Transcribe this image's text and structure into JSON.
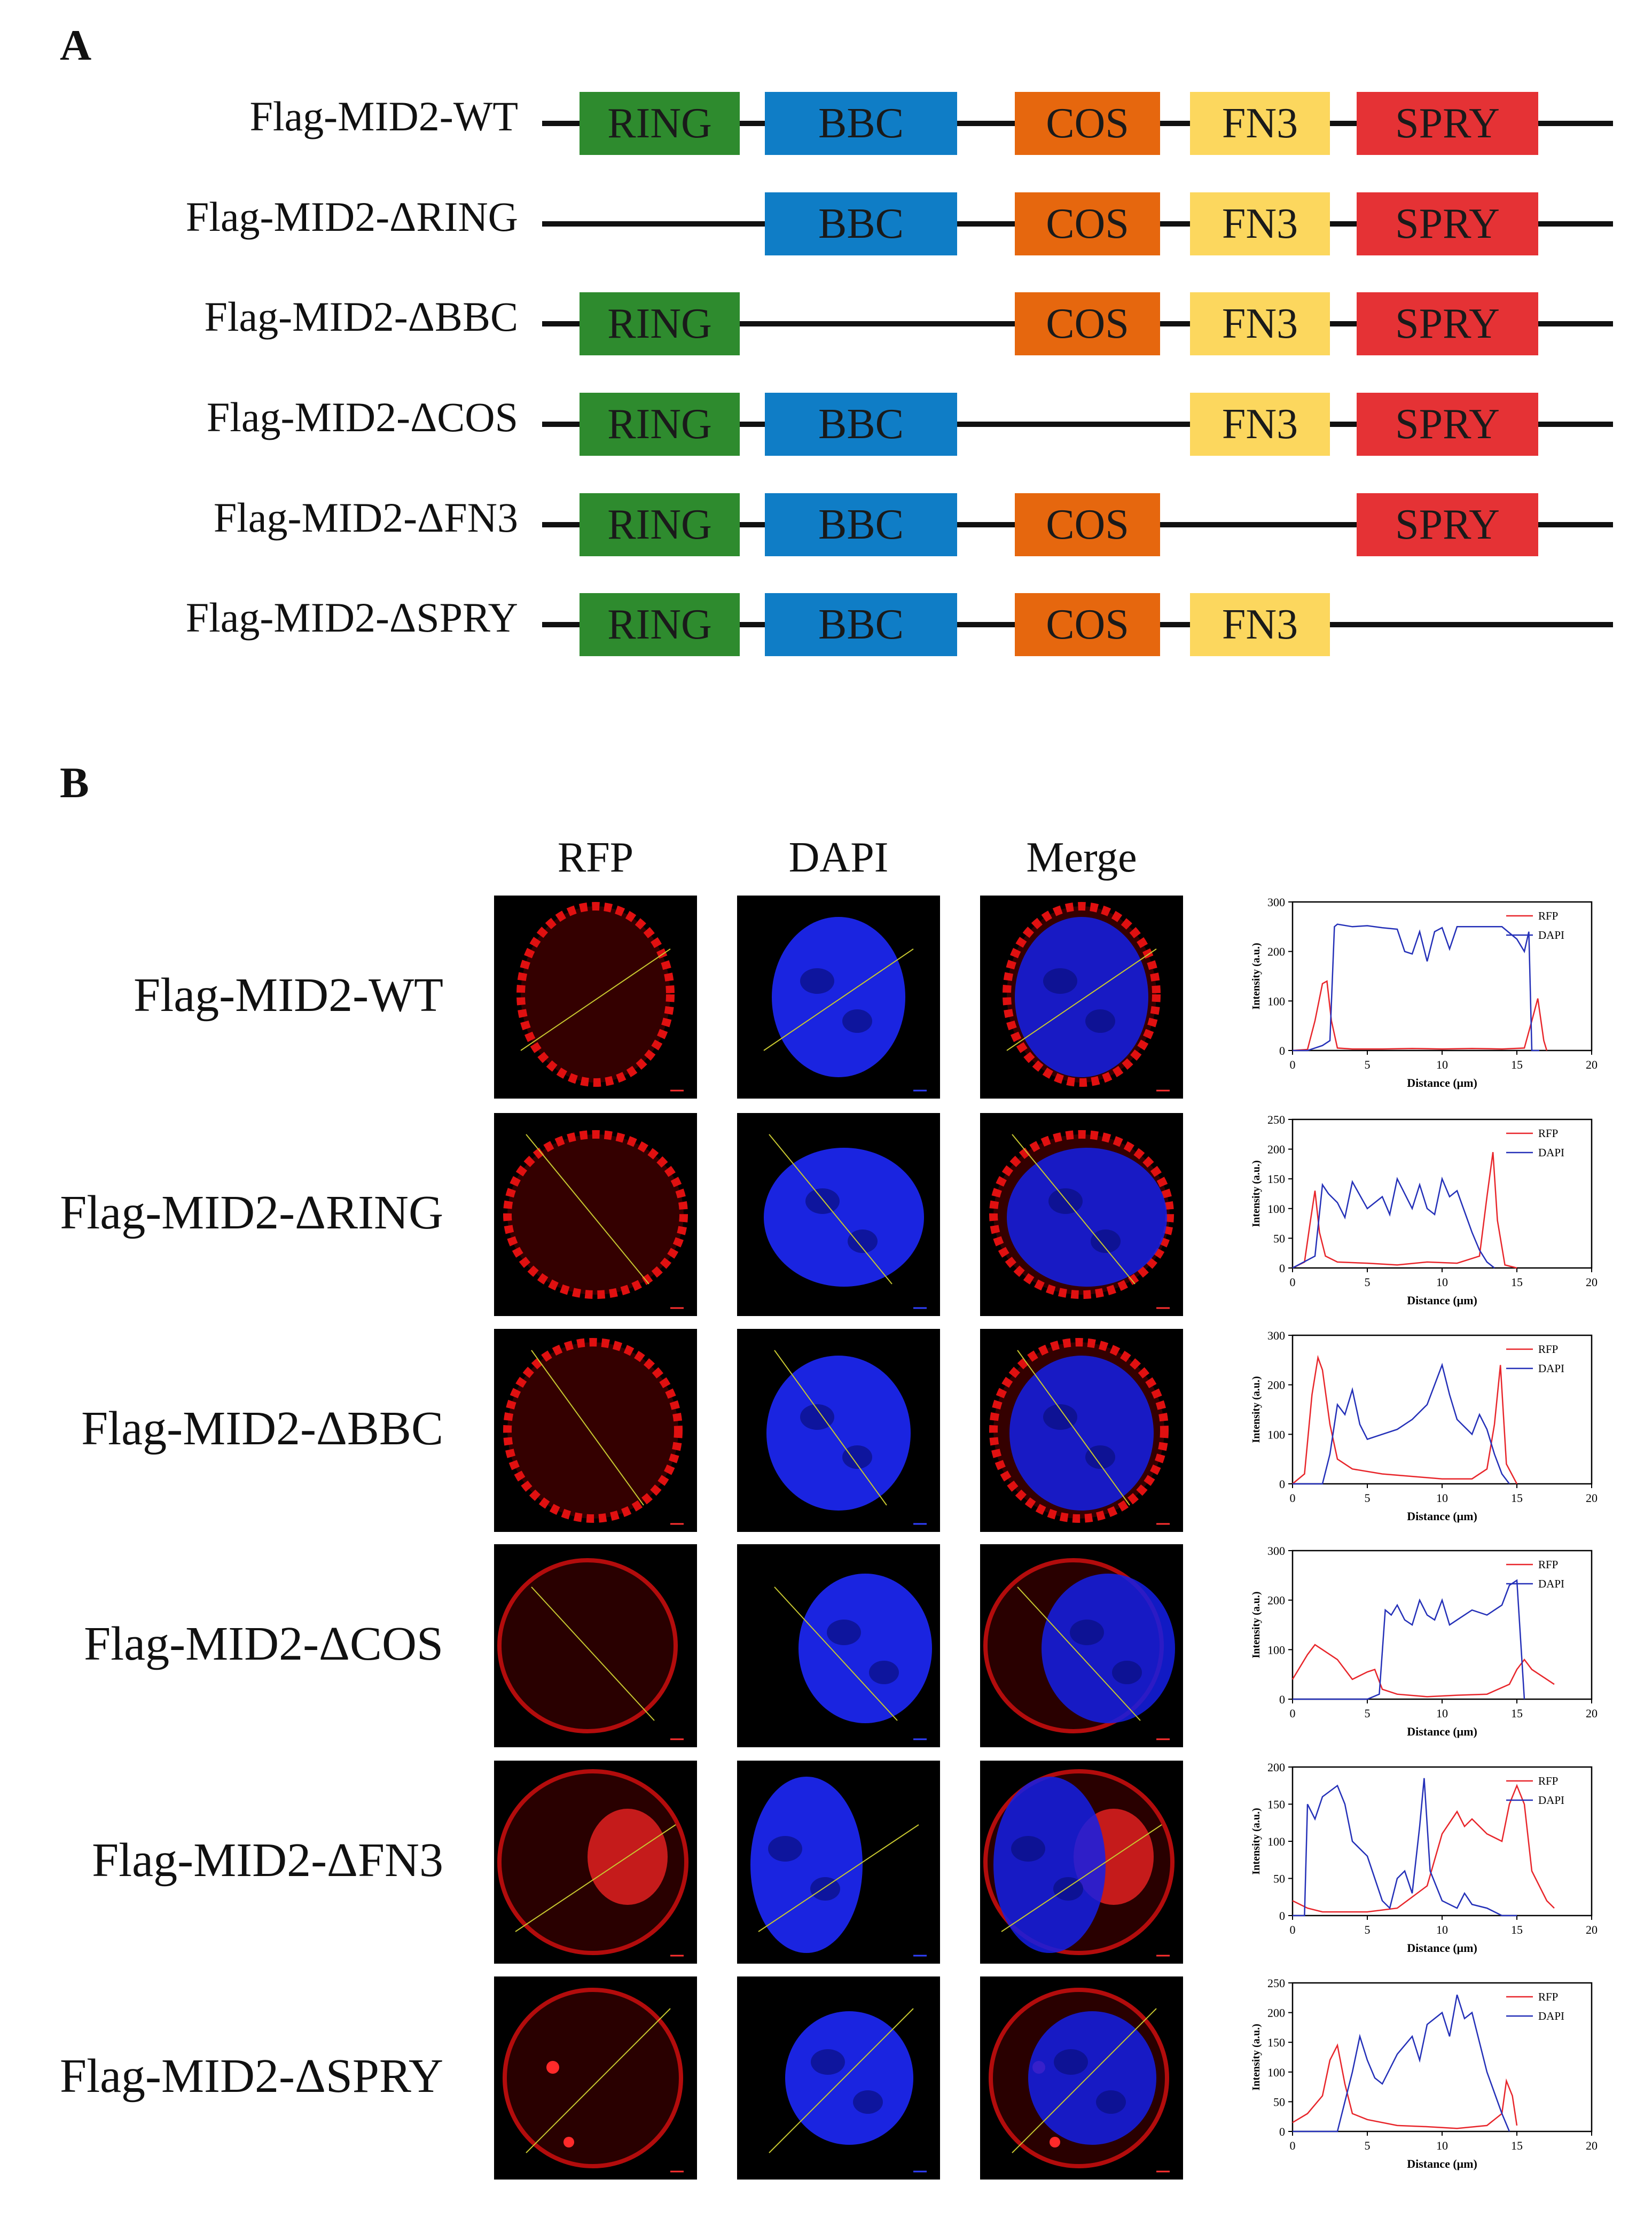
{
  "panel_a": {
    "letter": "A",
    "colors": {
      "RING": "#2e8b2e",
      "BBC": "#0f7dc6",
      "COS": "#e6670e",
      "FN3": "#fcd75e",
      "SPRY": "#e53235"
    },
    "constructs": [
      {
        "label": "Flag-MID2-WT",
        "domains": [
          "RING",
          "BBC",
          "COS",
          "FN3",
          "SPRY"
        ]
      },
      {
        "label": "Flag-MID2-ΔRING",
        "domains": [
          "BBC",
          "COS",
          "FN3",
          "SPRY"
        ]
      },
      {
        "label": "Flag-MID2-ΔBBC",
        "domains": [
          "RING",
          "COS",
          "FN3",
          "SPRY"
        ]
      },
      {
        "label": "Flag-MID2-ΔCOS",
        "domains": [
          "RING",
          "BBC",
          "FN3",
          "SPRY"
        ]
      },
      {
        "label": "Flag-MID2-ΔFN3",
        "domains": [
          "RING",
          "BBC",
          "COS",
          "SPRY"
        ]
      },
      {
        "label": "Flag-MID2-ΔSPRY",
        "domains": [
          "RING",
          "BBC",
          "COS",
          "FN3"
        ]
      }
    ]
  },
  "panel_b": {
    "letter": "B",
    "columns": [
      "RFP",
      "DAPI",
      "Merge"
    ],
    "rows": [
      {
        "label": "Flag-MID2-WT"
      },
      {
        "label": "Flag-MID2-ΔRING"
      },
      {
        "label": "Flag-MID2-ΔBBC"
      },
      {
        "label": "Flag-MID2-ΔCOS"
      },
      {
        "label": "Flag-MID2-ΔFN3"
      },
      {
        "label": "Flag-MID2-ΔSPRY"
      }
    ]
  },
  "chart_data": [
    {
      "type": "line",
      "xlabel": "Distance (μm)",
      "ylabel": "Intensity (a.u.)",
      "xlim": [
        0,
        20
      ],
      "ylim": [
        0,
        300
      ],
      "yticks": [
        0,
        100,
        200,
        300
      ],
      "xticks": [
        0,
        5,
        10,
        15,
        20
      ],
      "legend_position": "top-right",
      "series": [
        {
          "name": "RFP",
          "color": "#e8262b",
          "x": [
            0,
            1,
            1.5,
            2,
            2.3,
            2.6,
            3,
            4,
            6,
            8,
            10,
            12,
            14,
            15.5,
            16,
            16.4,
            16.8,
            17
          ],
          "y": [
            0,
            2,
            60,
            135,
            140,
            60,
            5,
            3,
            3,
            4,
            3,
            4,
            3,
            5,
            60,
            105,
            20,
            0
          ]
        },
        {
          "name": "DAPI",
          "color": "#2430b8",
          "x": [
            0,
            1,
            2,
            2.5,
            2.8,
            3,
            4,
            5,
            6,
            7,
            7.5,
            8,
            8.5,
            9,
            9.5,
            10,
            10.5,
            11,
            11.5,
            12,
            13,
            14,
            15,
            15.5,
            15.8,
            16,
            16.5
          ],
          "y": [
            0,
            0,
            10,
            20,
            250,
            255,
            250,
            252,
            248,
            245,
            200,
            195,
            240,
            180,
            240,
            248,
            205,
            250,
            250,
            250,
            250,
            250,
            225,
            200,
            240,
            0,
            0
          ]
        }
      ]
    },
    {
      "type": "line",
      "xlabel": "Distance (μm)",
      "ylabel": "Intensity (a.u.)",
      "xlim": [
        0,
        20
      ],
      "ylim": [
        0,
        250
      ],
      "yticks": [
        0,
        50,
        100,
        150,
        200,
        250
      ],
      "xticks": [
        0,
        5,
        10,
        15,
        20
      ],
      "legend_position": "top-right",
      "series": [
        {
          "name": "RFP",
          "color": "#e8262b",
          "x": [
            0,
            0.8,
            1.2,
            1.5,
            1.8,
            2.2,
            3,
            5,
            7,
            9,
            11,
            12.5,
            13,
            13.4,
            13.7,
            14.2,
            15
          ],
          "y": [
            0,
            10,
            80,
            130,
            60,
            20,
            10,
            8,
            5,
            10,
            8,
            20,
            120,
            195,
            80,
            5,
            0
          ]
        },
        {
          "name": "DAPI",
          "color": "#2430b8",
          "x": [
            0,
            1.5,
            2,
            2.4,
            3,
            3.5,
            4,
            5,
            6,
            6.5,
            7,
            8,
            8.5,
            9,
            9.5,
            10,
            10.5,
            11,
            11.5,
            12,
            12.5,
            13,
            13.5
          ],
          "y": [
            0,
            20,
            140,
            125,
            110,
            85,
            145,
            100,
            120,
            90,
            150,
            100,
            140,
            100,
            90,
            150,
            120,
            130,
            95,
            60,
            30,
            10,
            0
          ]
        }
      ]
    },
    {
      "type": "line",
      "xlabel": "Distance (μm)",
      "ylabel": "Intensity (a.u.)",
      "xlim": [
        0,
        20
      ],
      "ylim": [
        0,
        300
      ],
      "yticks": [
        0,
        100,
        200,
        300
      ],
      "xticks": [
        0,
        5,
        10,
        15,
        20
      ],
      "legend_position": "top-right",
      "series": [
        {
          "name": "RFP",
          "color": "#e8262b",
          "x": [
            0,
            0.8,
            1.3,
            1.7,
            2,
            2.5,
            3,
            4,
            6,
            8,
            10,
            12,
            13,
            13.5,
            13.9,
            14.3,
            15
          ],
          "y": [
            0,
            20,
            180,
            255,
            230,
            120,
            50,
            30,
            20,
            15,
            10,
            10,
            30,
            120,
            240,
            40,
            0
          ]
        },
        {
          "name": "DAPI",
          "color": "#2430b8",
          "x": [
            0,
            2,
            2.5,
            3,
            3.5,
            4,
            4.5,
            5,
            6,
            7,
            8,
            9,
            9.5,
            10,
            10.5,
            11,
            12,
            12.5,
            13,
            13.5,
            14,
            14.5
          ],
          "y": [
            0,
            0,
            60,
            160,
            140,
            190,
            120,
            90,
            100,
            110,
            130,
            160,
            200,
            240,
            180,
            130,
            100,
            140,
            110,
            60,
            20,
            0
          ]
        }
      ]
    },
    {
      "type": "line",
      "xlabel": "Distance (μm)",
      "ylabel": "Intensity (a.u.)",
      "xlim": [
        0,
        20
      ],
      "ylim": [
        0,
        300
      ],
      "yticks": [
        0,
        100,
        200,
        300
      ],
      "xticks": [
        0,
        5,
        10,
        15,
        20
      ],
      "legend_position": "top-right",
      "series": [
        {
          "name": "RFP",
          "color": "#e8262b",
          "x": [
            0,
            1,
            1.5,
            2,
            3,
            4,
            5,
            5.5,
            6,
            7,
            9,
            11,
            13,
            14.5,
            15,
            15.5,
            16,
            16.5,
            17,
            17.5
          ],
          "y": [
            40,
            90,
            110,
            100,
            80,
            40,
            55,
            60,
            20,
            10,
            5,
            8,
            10,
            30,
            60,
            80,
            60,
            50,
            40,
            30
          ]
        },
        {
          "name": "DAPI",
          "color": "#2430b8",
          "x": [
            0,
            5,
            5.8,
            6.2,
            6.6,
            7,
            7.5,
            8,
            8.5,
            9,
            9.5,
            10,
            10.5,
            11,
            12,
            13,
            14,
            14.5,
            15,
            15.5
          ],
          "y": [
            0,
            0,
            10,
            180,
            170,
            190,
            160,
            150,
            200,
            170,
            160,
            200,
            150,
            160,
            180,
            170,
            190,
            230,
            240,
            0
          ]
        }
      ]
    },
    {
      "type": "line",
      "xlabel": "Distance (μm)",
      "ylabel": "Intensity (a.u.)",
      "xlim": [
        0,
        20
      ],
      "ylim": [
        0,
        200
      ],
      "yticks": [
        0,
        50,
        100,
        150,
        200
      ],
      "xticks": [
        0,
        5,
        10,
        15,
        20
      ],
      "legend_position": "top-right",
      "series": [
        {
          "name": "RFP",
          "color": "#e8262b",
          "x": [
            0,
            1,
            2,
            3,
            5,
            7,
            9,
            10,
            11,
            11.5,
            12,
            13,
            14,
            14.5,
            15,
            15.5,
            16,
            17,
            17.5
          ],
          "y": [
            20,
            10,
            5,
            5,
            5,
            10,
            40,
            110,
            140,
            120,
            130,
            110,
            100,
            150,
            175,
            150,
            60,
            20,
            10
          ]
        },
        {
          "name": "DAPI",
          "color": "#2430b8",
          "x": [
            0,
            0.8,
            1,
            1.5,
            2,
            3,
            3.5,
            4,
            5,
            6,
            6.5,
            7,
            7.5,
            8,
            8.5,
            8.8,
            9.2,
            10,
            11,
            11.5,
            12,
            13,
            14,
            15
          ],
          "y": [
            0,
            0,
            150,
            130,
            160,
            175,
            150,
            100,
            80,
            20,
            10,
            50,
            60,
            30,
            120,
            185,
            60,
            20,
            10,
            30,
            15,
            10,
            0,
            0
          ]
        }
      ]
    },
    {
      "type": "line",
      "xlabel": "Distance (μm)",
      "ylabel": "Intensity (a.u.)",
      "xlim": [
        0,
        20
      ],
      "ylim": [
        0,
        250
      ],
      "yticks": [
        0,
        50,
        100,
        150,
        200,
        250
      ],
      "xticks": [
        0,
        5,
        10,
        15,
        20
      ],
      "legend_position": "top-right",
      "series": [
        {
          "name": "RFP",
          "color": "#e8262b",
          "x": [
            0,
            1,
            2,
            2.5,
            3,
            3.5,
            4,
            5,
            7,
            9,
            11,
            13,
            14,
            14.3,
            14.7,
            15
          ],
          "y": [
            15,
            30,
            60,
            120,
            145,
            80,
            30,
            20,
            10,
            8,
            5,
            10,
            30,
            85,
            60,
            10
          ]
        },
        {
          "name": "DAPI",
          "color": "#2430b8",
          "x": [
            0,
            3,
            4,
            4.5,
            5,
            5.5,
            6,
            7,
            8,
            8.5,
            9,
            10,
            10.5,
            11,
            11.5,
            12,
            12.5,
            13,
            14,
            14.5
          ],
          "y": [
            0,
            0,
            100,
            160,
            120,
            90,
            80,
            130,
            160,
            120,
            180,
            200,
            160,
            230,
            190,
            200,
            150,
            100,
            30,
            0
          ]
        }
      ]
    }
  ]
}
